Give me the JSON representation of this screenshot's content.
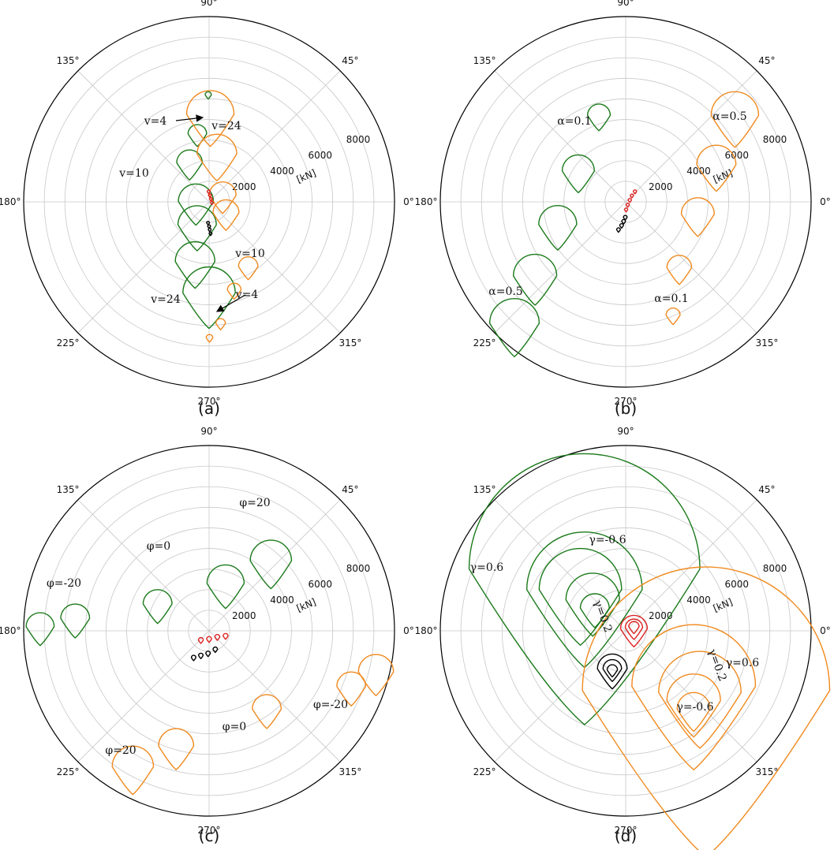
{
  "figure": {
    "radial_unit": "[kN]",
    "angle_labels": [
      "0°",
      "45°",
      "90°",
      "135°",
      "180°",
      "225°",
      "270°",
      "315°"
    ],
    "radial_ticks": [
      "2000",
      "4000",
      "6000",
      "8000"
    ],
    "colors": {
      "green": "#1b7a1b",
      "orange": "#f08a1f",
      "red": "#dd2222",
      "black": "#000000",
      "grid": "#c8c8c8"
    }
  },
  "chart_data": [
    {
      "type": "polar-contour",
      "caption": "(a)",
      "r_max": 9000,
      "r_grid": [
        1000,
        2000,
        3000,
        4000,
        5000,
        6000,
        7000,
        8000,
        9000
      ],
      "r_tick_labels": [
        "2000",
        "4000",
        "6000",
        "8000"
      ],
      "radial_unit": "[kN]",
      "angle_labels_deg": [
        0,
        45,
        90,
        135,
        180,
        225,
        270,
        315
      ],
      "annotations": [
        "v=4",
        "v=24",
        "v=10",
        "v=10",
        "v=24",
        "v=4"
      ],
      "contours": [
        {
          "color": "green",
          "points": [
            {
              "x": -40,
              "y": 5200,
              "r": 150
            },
            {
              "x": -570,
              "y": 3300,
              "r": 450
            },
            {
              "x": -950,
              "y": 1900,
              "r": 620
            },
            {
              "x": -640,
              "y": 20,
              "r": 850
            },
            {
              "x": -580,
              "y": -1120,
              "r": 930
            },
            {
              "x": -680,
              "y": -2900,
              "r": 960
            },
            {
              "x": 0,
              "y": -4430,
              "r": 1270
            }
          ]
        },
        {
          "color": "orange",
          "points": [
            {
              "x": 60,
              "y": 4250,
              "r": 1150
            },
            {
              "x": 380,
              "y": 2320,
              "r": 960
            },
            {
              "x": 660,
              "y": 320,
              "r": 650
            },
            {
              "x": 820,
              "y": -530,
              "r": 630
            },
            {
              "x": 1900,
              "y": -3140,
              "r": 470
            },
            {
              "x": 1220,
              "y": -4280,
              "r": 330
            },
            {
              "x": 560,
              "y": -5900,
              "r": 230
            },
            {
              "x": 20,
              "y": -6600,
              "r": 160
            }
          ]
        },
        {
          "color": "red",
          "points": [
            {
              "x": -20,
              "y": 500,
              "r": 70
            },
            {
              "x": 40,
              "y": 320,
              "r": 70
            },
            {
              "x": 90,
              "y": 140,
              "r": 70
            },
            {
              "x": 140,
              "y": -40,
              "r": 70
            }
          ]
        },
        {
          "color": "black",
          "points": [
            {
              "x": -50,
              "y": -1020,
              "r": 70
            },
            {
              "x": 0,
              "y": -1190,
              "r": 70
            },
            {
              "x": 30,
              "y": -1350,
              "r": 70
            },
            {
              "x": 70,
              "y": -1540,
              "r": 70
            }
          ]
        }
      ]
    },
    {
      "type": "polar-contour",
      "caption": "(b)",
      "r_max": 9000,
      "r_grid": [
        1000,
        2000,
        3000,
        4000,
        5000,
        6000,
        7000,
        8000,
        9000
      ],
      "r_tick_labels": [
        "2000",
        "4000",
        "6000",
        "8000"
      ],
      "radial_unit": "[kN]",
      "angle_labels_deg": [
        0,
        45,
        90,
        135,
        180,
        225,
        270,
        315
      ],
      "annotations": [
        "α=0.1",
        "α=0.5",
        "α=0.5",
        "α=0.1"
      ],
      "contours": [
        {
          "color": "green",
          "points": [
            {
              "x": -1300,
              "y": 4200,
              "r": 550
            },
            {
              "x": -2300,
              "y": 1500,
              "r": 780
            },
            {
              "x": -3300,
              "y": -1100,
              "r": 920
            },
            {
              "x": -4400,
              "y": -3600,
              "r": 1050
            },
            {
              "x": -5400,
              "y": -5900,
              "r": 1200
            }
          ]
        },
        {
          "color": "orange",
          "points": [
            {
              "x": 5300,
              "y": 4200,
              "r": 1150
            },
            {
              "x": 4400,
              "y": 1800,
              "r": 950
            },
            {
              "x": 3500,
              "y": -600,
              "r": 800
            },
            {
              "x": 2600,
              "y": -3200,
              "r": 600
            },
            {
              "x": 2300,
              "y": -5500,
              "r": 340
            }
          ]
        },
        {
          "color": "red",
          "points": [
            {
              "x": 450,
              "y": 500,
              "r": 80
            },
            {
              "x": 300,
              "y": 300,
              "r": 80
            },
            {
              "x": 200,
              "y": 80,
              "r": 80
            },
            {
              "x": 100,
              "y": -150,
              "r": 80
            },
            {
              "x": 20,
              "y": -380,
              "r": 80
            }
          ]
        },
        {
          "color": "black",
          "points": [
            {
              "x": -350,
              "y": -1350,
              "r": 90
            },
            {
              "x": -200,
              "y": -1150,
              "r": 90
            },
            {
              "x": -100,
              "y": -950,
              "r": 90
            },
            {
              "x": -20,
              "y": -750,
              "r": 90
            }
          ]
        }
      ]
    },
    {
      "type": "polar-contour",
      "caption": "(c)",
      "r_max": 9000,
      "r_grid": [
        1000,
        2000,
        3000,
        4000,
        5000,
        6000,
        7000,
        8000,
        9000
      ],
      "r_tick_labels": [
        "2000",
        "4000",
        "6000",
        "8000"
      ],
      "radial_unit": "[kN]",
      "angle_labels_deg": [
        0,
        45,
        90,
        135,
        180,
        225,
        270,
        315
      ],
      "annotations": [
        "φ=20",
        "φ=0",
        "φ=-20",
        "φ=-20",
        "φ=0",
        "φ=20"
      ],
      "contours": [
        {
          "color": "green",
          "points": [
            {
              "x": 3000,
              "y": 3400,
              "r": 1000
            },
            {
              "x": 800,
              "y": 2300,
              "r": 900
            },
            {
              "x": -2500,
              "y": 1300,
              "r": 700
            },
            {
              "x": -6500,
              "y": 600,
              "r": 700
            },
            {
              "x": -8200,
              "y": 200,
              "r": 680
            }
          ]
        },
        {
          "color": "orange",
          "points": [
            {
              "x": 8100,
              "y": -2000,
              "r": 850
            },
            {
              "x": 6900,
              "y": -2700,
              "r": 700
            },
            {
              "x": 2800,
              "y": -3800,
              "r": 700
            },
            {
              "x": -1600,
              "y": -5600,
              "r": 850
            },
            {
              "x": -3700,
              "y": -6600,
              "r": 1000
            }
          ]
        },
        {
          "color": "red",
          "points": [
            {
              "x": -400,
              "y": -450,
              "r": 120
            },
            {
              "x": 0,
              "y": -400,
              "r": 120
            },
            {
              "x": 400,
              "y": -300,
              "r": 120
            },
            {
              "x": 800,
              "y": -250,
              "r": 120
            }
          ]
        },
        {
          "color": "black",
          "points": [
            {
              "x": -750,
              "y": -1300,
              "r": 110
            },
            {
              "x": -400,
              "y": -1200,
              "r": 110
            },
            {
              "x": -50,
              "y": -1100,
              "r": 110
            },
            {
              "x": 300,
              "y": -900,
              "r": 110
            }
          ]
        }
      ]
    },
    {
      "type": "polar-contour",
      "caption": "(d)",
      "r_max": 9000,
      "r_grid": [
        1000,
        2000,
        3000,
        4000,
        5000,
        6000,
        7000,
        8000,
        9000
      ],
      "r_tick_labels": [
        "2000",
        "4000",
        "6000",
        "8000"
      ],
      "radial_unit": "[kN]",
      "angle_labels_deg": [
        0,
        45,
        90,
        135,
        180,
        225,
        270,
        315
      ],
      "annotations": [
        "γ=0.6",
        "γ=-0.6",
        "γ=0.2",
        "γ=0.6",
        "γ=0.2",
        "γ=-0.6"
      ],
      "contours": [
        {
          "color": "green",
          "points": [
            {
              "x": -2000,
              "y": 3000,
              "r": 5600
            },
            {
              "x": -2000,
              "y": 2000,
              "r": 2800
            },
            {
              "x": -2200,
              "y": 2000,
              "r": 2000
            },
            {
              "x": -1600,
              "y": 1500,
              "r": 1300
            },
            {
              "x": -1500,
              "y": 1100,
              "r": 700
            }
          ]
        },
        {
          "color": "orange",
          "points": [
            {
              "x": 3900,
              "y": -2900,
              "r": 6000
            },
            {
              "x": 3300,
              "y": -2700,
              "r": 3000
            },
            {
              "x": 3600,
              "y": -3000,
              "r": 2000
            },
            {
              "x": 3300,
              "y": -3400,
              "r": 1300
            },
            {
              "x": 3300,
              "y": -3800,
              "r": 800
            }
          ]
        },
        {
          "color": "red",
          "points": [
            {
              "x": 400,
              "y": 100,
              "r": 650
            },
            {
              "x": 400,
              "y": 150,
              "r": 420
            },
            {
              "x": 400,
              "y": 200,
              "r": 250
            }
          ]
        },
        {
          "color": "black",
          "points": [
            {
              "x": -650,
              "y": -1850,
              "r": 720
            },
            {
              "x": -650,
              "y": -1850,
              "r": 450
            },
            {
              "x": -650,
              "y": -1900,
              "r": 250
            }
          ]
        }
      ]
    }
  ]
}
